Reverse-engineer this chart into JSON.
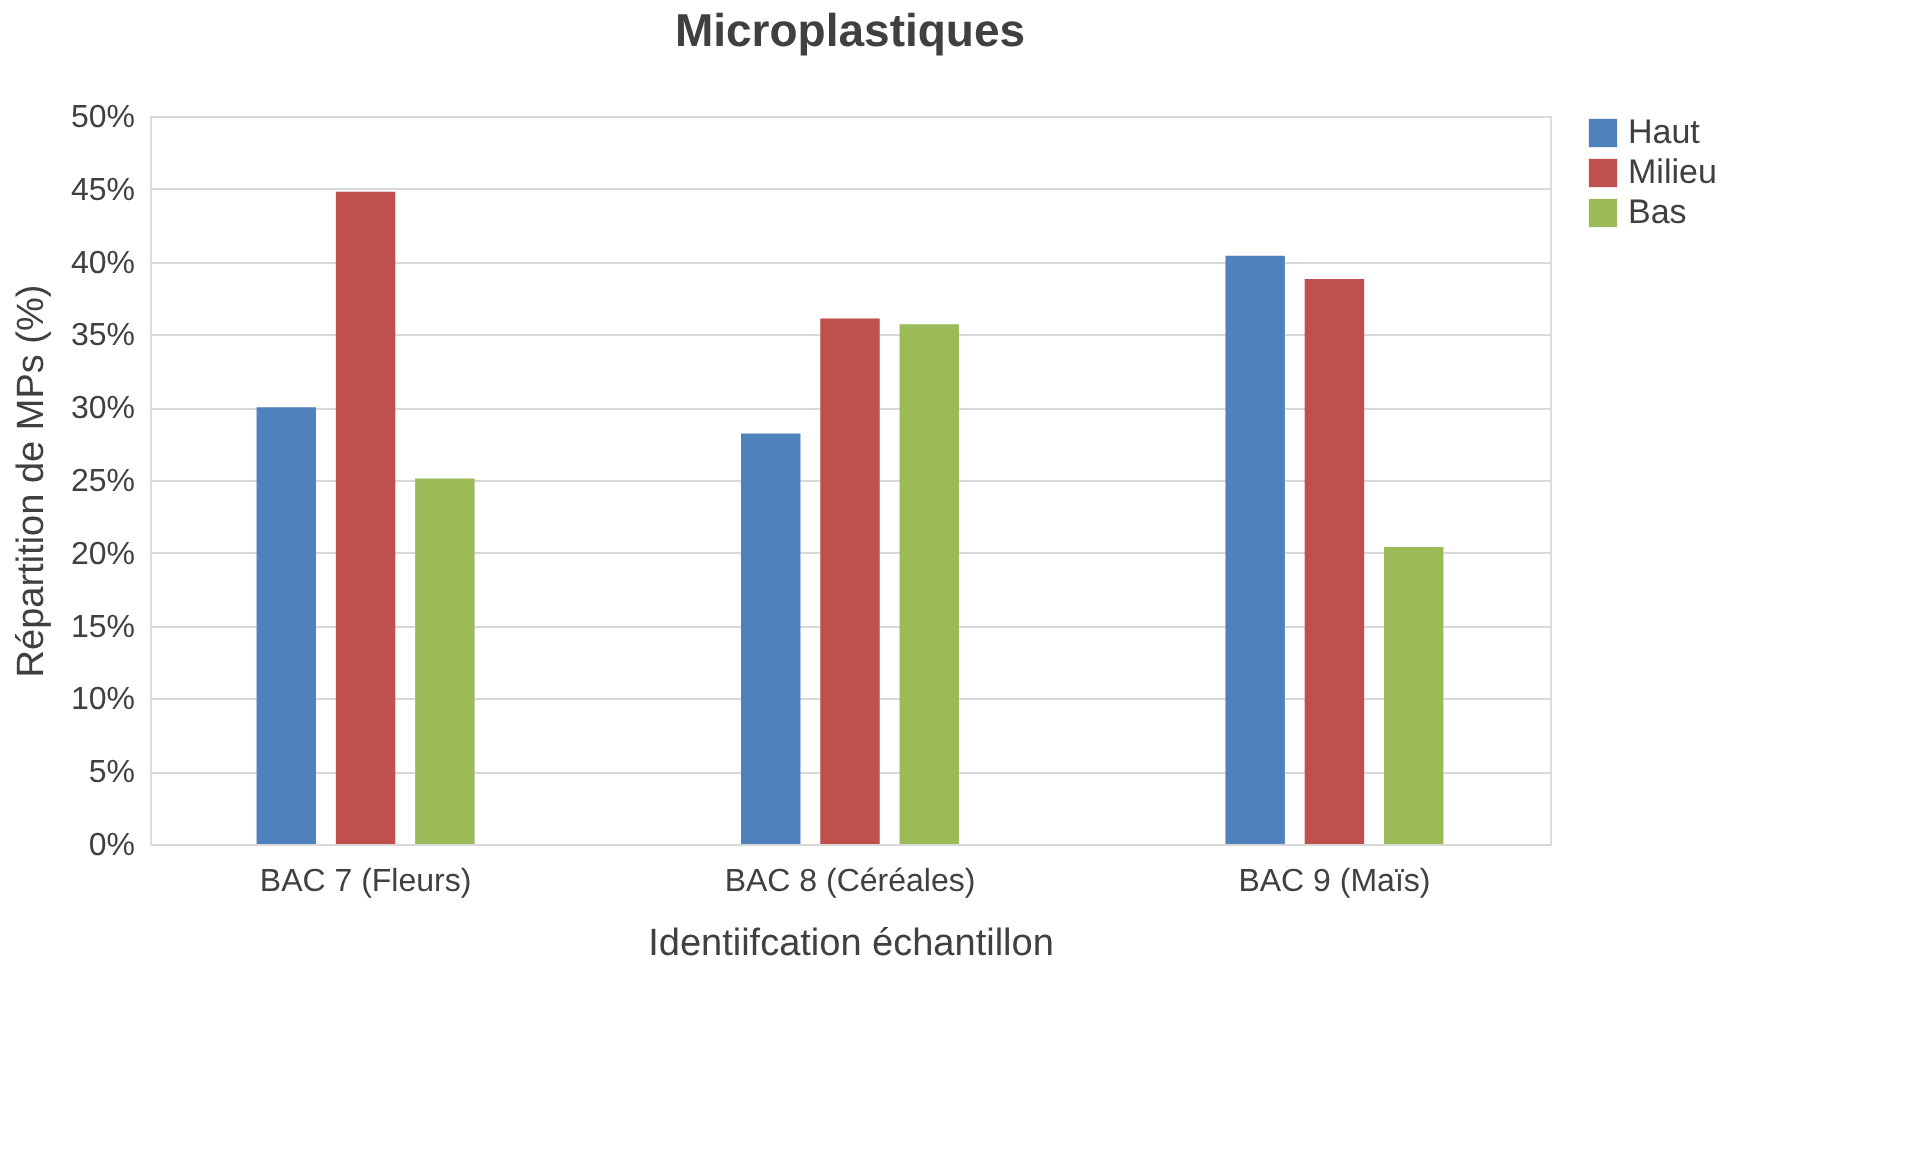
{
  "chart_data": {
    "type": "bar",
    "title": "Microplastiques",
    "xlabel": "Identiifcation échantillon",
    "ylabel": "Répartition de MPs (%)",
    "categories": [
      "BAC 7 (Fleurs)",
      "BAC 8 (Céréales)",
      "BAC 9 (Maïs)"
    ],
    "series": [
      {
        "name": "Haut",
        "color": "#4f81bd",
        "values": [
          30.0,
          28.2,
          40.4
        ]
      },
      {
        "name": "Milieu",
        "color": "#c0504d",
        "values": [
          44.8,
          36.1,
          38.8
        ]
      },
      {
        "name": "Bas",
        "color": "#9bbb59",
        "values": [
          25.1,
          35.7,
          20.4
        ]
      }
    ],
    "ylim": [
      0,
      50
    ],
    "yticks": [
      {
        "value": 0,
        "label": "0%"
      },
      {
        "value": 5,
        "label": "5%"
      },
      {
        "value": 10,
        "label": "10%"
      },
      {
        "value": 15,
        "label": "15%"
      },
      {
        "value": 20,
        "label": "20%"
      },
      {
        "value": 25,
        "label": "25%"
      },
      {
        "value": 30,
        "label": "30%"
      },
      {
        "value": 35,
        "label": "35%"
      },
      {
        "value": 40,
        "label": "40%"
      },
      {
        "value": 45,
        "label": "45%"
      },
      {
        "value": 50,
        "label": "50%"
      }
    ],
    "grid": "y",
    "legend": "right"
  }
}
